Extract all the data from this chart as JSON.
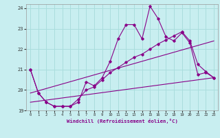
{
  "xlabel": "Windchill (Refroidissement éolien,°C)",
  "bg_color": "#c8eef0",
  "line_color": "#880088",
  "grid_color": "#aadddd",
  "xlim": [
    -0.5,
    23.5
  ],
  "ylim": [
    19.0,
    24.2
  ],
  "yticks": [
    19,
    20,
    21,
    22,
    23,
    24
  ],
  "xticks": [
    0,
    1,
    2,
    3,
    4,
    5,
    6,
    7,
    8,
    9,
    10,
    11,
    12,
    13,
    14,
    15,
    16,
    17,
    18,
    19,
    20,
    21,
    22,
    23
  ],
  "line1_x": [
    0,
    1,
    2,
    3,
    4,
    5,
    6,
    7,
    8,
    9,
    10,
    11,
    12,
    13,
    14,
    15,
    16,
    17,
    18,
    19,
    20,
    21,
    22,
    23
  ],
  "line1_y": [
    21.0,
    19.85,
    19.4,
    19.2,
    19.2,
    19.2,
    19.4,
    20.4,
    20.2,
    20.6,
    21.4,
    22.5,
    23.2,
    23.2,
    22.5,
    24.1,
    23.5,
    22.6,
    22.4,
    22.8,
    22.3,
    20.75,
    20.85,
    20.6
  ],
  "line2_x": [
    0,
    1,
    2,
    3,
    4,
    5,
    6,
    7,
    8,
    9,
    10,
    11,
    12,
    13,
    14,
    15,
    16,
    17,
    18,
    19,
    20,
    21,
    22,
    23
  ],
  "line2_y": [
    21.0,
    19.85,
    19.4,
    19.2,
    19.2,
    19.2,
    19.55,
    20.0,
    20.15,
    20.5,
    20.85,
    21.1,
    21.35,
    21.6,
    21.75,
    22.0,
    22.25,
    22.45,
    22.65,
    22.85,
    22.4,
    21.25,
    20.9,
    20.6
  ],
  "line3_x": [
    0,
    23
  ],
  "line3_y": [
    19.4,
    20.6
  ],
  "line4_x": [
    0,
    23
  ],
  "line4_y": [
    19.85,
    22.4
  ]
}
